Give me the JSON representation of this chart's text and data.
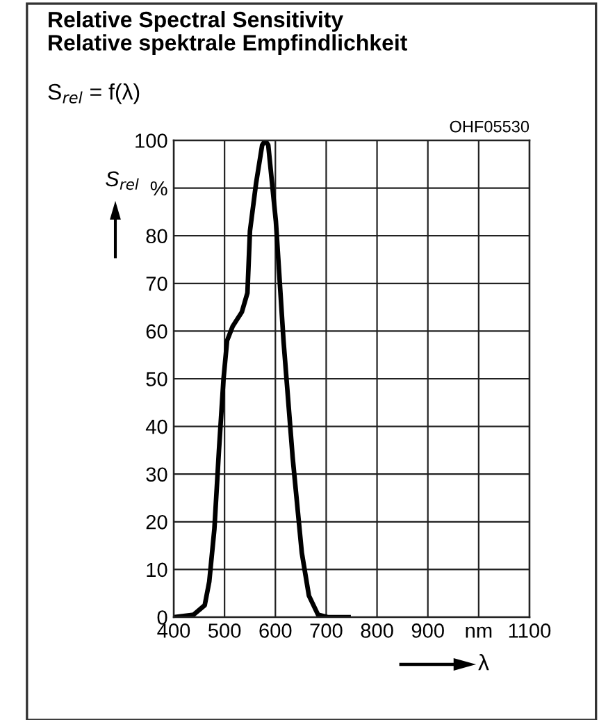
{
  "chart_data": {
    "type": "line",
    "title": "Relative Spectral Sensitivity\nRelative spektrale Empfindlichkeit",
    "subtitle": "S$_{rel}$ = f(λ)",
    "xlabel": "λ",
    "ylabel": "S$_{rel}$",
    "annotations": [
      "OHF05530"
    ],
    "x": [
      400,
      439,
      461,
      470,
      480,
      489,
      498,
      505,
      516,
      534,
      545,
      550,
      562,
      574,
      580,
      586,
      601,
      616,
      634,
      652,
      666,
      684,
      703,
      744
    ],
    "series": [
      {
        "color": "#000000",
        "values": [
          0,
          0.5,
          2.5,
          7.5,
          18.5,
          35,
          50,
          58,
          61,
          64,
          68,
          81,
          91,
          99,
          100,
          99,
          83,
          58,
          33.5,
          13.5,
          4.5,
          0.5,
          0,
          0
        ]
      }
    ],
    "xlim": [
      400,
      1100
    ],
    "xticks": [
      400,
      500,
      600,
      700,
      800,
      900,
      {
        "value": 1000,
        "label": "nm"
      },
      1100
    ],
    "ylim": [
      0,
      100
    ],
    "yticks": [
      0,
      10,
      20,
      30,
      40,
      50,
      60,
      70,
      80,
      {
        "value": 90,
        "label": "%"
      },
      100
    ],
    "grid": true,
    "legend": false,
    "marker": "none",
    "line_style": "solid"
  }
}
